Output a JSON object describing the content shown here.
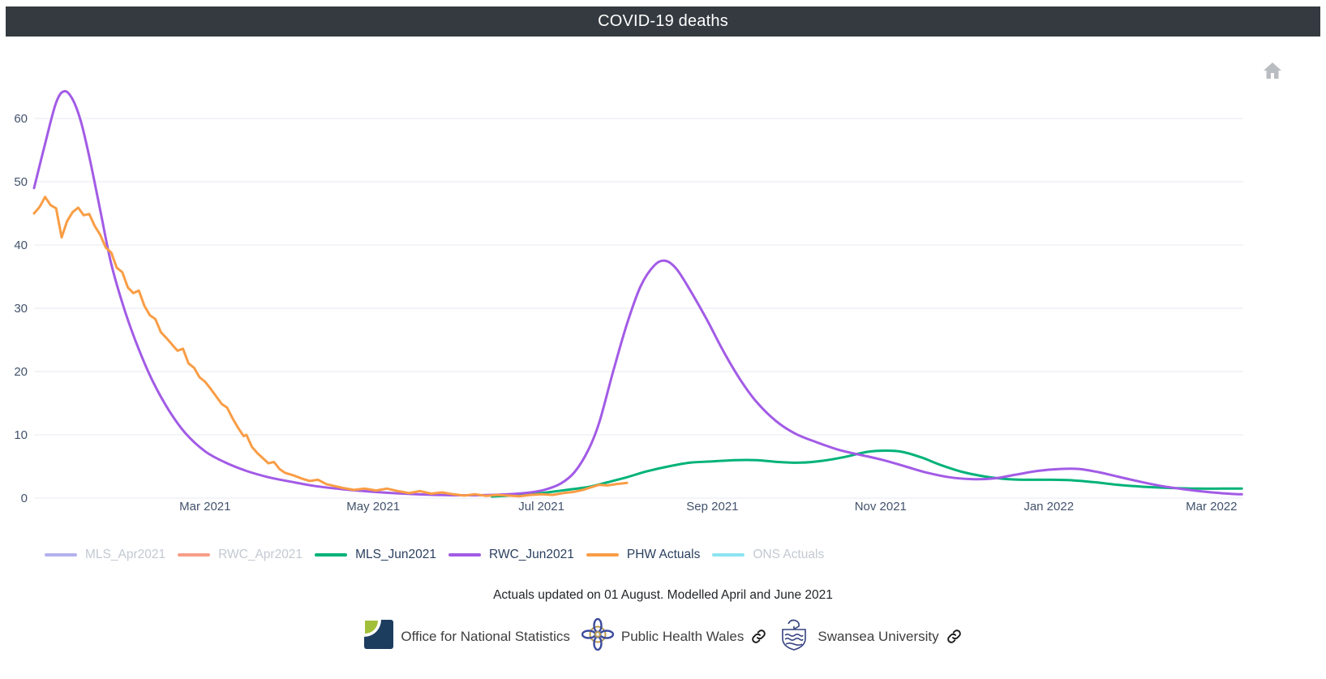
{
  "header": {
    "title": "COVID-19 deaths"
  },
  "toolbar": {
    "home_tooltip": "Reset axes"
  },
  "chart_data": {
    "type": "line",
    "title": "COVID-19 deaths",
    "xlabel": "",
    "ylabel": "",
    "grid": "horizontal-only",
    "legend_position": "bottom-left",
    "x_axis": {
      "range": [
        "2020-12-29",
        "2022-03-12"
      ],
      "ticks": [
        {
          "label": "Mar 2021",
          "date": "2021-03-01"
        },
        {
          "label": "May 2021",
          "date": "2021-05-01"
        },
        {
          "label": "Jul 2021",
          "date": "2021-07-01"
        },
        {
          "label": "Sep 2021",
          "date": "2021-09-01"
        },
        {
          "label": "Nov 2021",
          "date": "2021-11-01"
        },
        {
          "label": "Jan 2022",
          "date": "2022-01-01"
        },
        {
          "label": "Mar 2022",
          "date": "2022-03-01"
        }
      ]
    },
    "y_axis": {
      "range": [
        0,
        66
      ],
      "ticks": [
        0,
        10,
        20,
        30,
        40,
        50,
        60
      ]
    },
    "series": [
      {
        "name": "MLS_Apr2021",
        "color": "#b3b1ef",
        "visible": false,
        "line_style": "smooth",
        "points": []
      },
      {
        "name": "RWC_Apr2021",
        "color": "#f89e88",
        "visible": false,
        "line_style": "smooth",
        "points": []
      },
      {
        "name": "MLS_Jun2021",
        "color": "#00b279",
        "visible": true,
        "line_style": "smooth",
        "points": [
          [
            "2021-06-13",
            0.25
          ],
          [
            "2021-06-20",
            0.4
          ],
          [
            "2021-06-27",
            0.6
          ],
          [
            "2021-07-04",
            0.95
          ],
          [
            "2021-07-11",
            1.35
          ],
          [
            "2021-07-18",
            1.75
          ],
          [
            "2021-07-25",
            2.5
          ],
          [
            "2021-08-01",
            3.3
          ],
          [
            "2021-08-08",
            4.2
          ],
          [
            "2021-08-16",
            5.0
          ],
          [
            "2021-08-24",
            5.6
          ],
          [
            "2021-09-01",
            5.8
          ],
          [
            "2021-09-09",
            6.0
          ],
          [
            "2021-09-17",
            6.0
          ],
          [
            "2021-09-25",
            5.7
          ],
          [
            "2021-10-03",
            5.6
          ],
          [
            "2021-10-11",
            5.9
          ],
          [
            "2021-10-19",
            6.5
          ],
          [
            "2021-10-27",
            7.3
          ],
          [
            "2021-11-03",
            7.5
          ],
          [
            "2021-11-09",
            7.3
          ],
          [
            "2021-11-16",
            6.4
          ],
          [
            "2021-11-23",
            5.2
          ],
          [
            "2021-12-01",
            4.1
          ],
          [
            "2021-12-09",
            3.4
          ],
          [
            "2021-12-17",
            3.0
          ],
          [
            "2021-12-25",
            2.9
          ],
          [
            "2022-01-02",
            2.9
          ],
          [
            "2022-01-10",
            2.8
          ],
          [
            "2022-01-18",
            2.5
          ],
          [
            "2022-01-26",
            2.1
          ],
          [
            "2022-02-04",
            1.8
          ],
          [
            "2022-02-14",
            1.6
          ],
          [
            "2022-02-24",
            1.5
          ],
          [
            "2022-03-06",
            1.5
          ],
          [
            "2022-03-12",
            1.5
          ]
        ]
      },
      {
        "name": "RWC_Jun2021",
        "color": "#a25be6",
        "visible": true,
        "line_style": "smooth",
        "points": [
          [
            "2020-12-29",
            49
          ],
          [
            "2021-01-02",
            56
          ],
          [
            "2021-01-06",
            62.5
          ],
          [
            "2021-01-09",
            64.3
          ],
          [
            "2021-01-12",
            63
          ],
          [
            "2021-01-15",
            59.5
          ],
          [
            "2021-01-18",
            54
          ],
          [
            "2021-01-22",
            45.5
          ],
          [
            "2021-01-26",
            37
          ],
          [
            "2021-01-31",
            29.5
          ],
          [
            "2021-02-05",
            23.5
          ],
          [
            "2021-02-10",
            18.5
          ],
          [
            "2021-02-16",
            13.8
          ],
          [
            "2021-02-22",
            10.2
          ],
          [
            "2021-03-01",
            7.4
          ],
          [
            "2021-03-08",
            5.7
          ],
          [
            "2021-03-16",
            4.3
          ],
          [
            "2021-03-24",
            3.3
          ],
          [
            "2021-04-01",
            2.6
          ],
          [
            "2021-04-10",
            1.9
          ],
          [
            "2021-04-20",
            1.4
          ],
          [
            "2021-05-01",
            1.0
          ],
          [
            "2021-05-12",
            0.7
          ],
          [
            "2021-05-24",
            0.5
          ],
          [
            "2021-06-05",
            0.45
          ],
          [
            "2021-06-16",
            0.55
          ],
          [
            "2021-06-25",
            0.8
          ],
          [
            "2021-07-02",
            1.3
          ],
          [
            "2021-07-08",
            2.3
          ],
          [
            "2021-07-13",
            4.1
          ],
          [
            "2021-07-18",
            7.6
          ],
          [
            "2021-07-22",
            12
          ],
          [
            "2021-07-27",
            20
          ],
          [
            "2021-08-01",
            27.5
          ],
          [
            "2021-08-06",
            33.5
          ],
          [
            "2021-08-11",
            36.8
          ],
          [
            "2021-08-15",
            37.5
          ],
          [
            "2021-08-19",
            36.2
          ],
          [
            "2021-08-24",
            32.8
          ],
          [
            "2021-08-30",
            28.2
          ],
          [
            "2021-09-05",
            23.2
          ],
          [
            "2021-09-11",
            18.8
          ],
          [
            "2021-09-17",
            15.2
          ],
          [
            "2021-09-24",
            12.2
          ],
          [
            "2021-10-01",
            10.2
          ],
          [
            "2021-10-09",
            8.8
          ],
          [
            "2021-10-17",
            7.6
          ],
          [
            "2021-10-25",
            6.8
          ],
          [
            "2021-11-02",
            6.0
          ],
          [
            "2021-11-10",
            5.0
          ],
          [
            "2021-11-18",
            4.0
          ],
          [
            "2021-11-26",
            3.3
          ],
          [
            "2021-12-04",
            3.0
          ],
          [
            "2021-12-12",
            3.1
          ],
          [
            "2021-12-20",
            3.7
          ],
          [
            "2021-12-28",
            4.3
          ],
          [
            "2022-01-05",
            4.6
          ],
          [
            "2022-01-12",
            4.6
          ],
          [
            "2022-01-19",
            4.1
          ],
          [
            "2022-01-26",
            3.4
          ],
          [
            "2022-02-03",
            2.6
          ],
          [
            "2022-02-11",
            1.9
          ],
          [
            "2022-02-19",
            1.4
          ],
          [
            "2022-02-27",
            1.0
          ],
          [
            "2022-03-07",
            0.7
          ],
          [
            "2022-03-12",
            0.6
          ]
        ]
      },
      {
        "name": "PHW Actuals",
        "color": "#f99d45",
        "visible": true,
        "line_style": "jagged",
        "points": [
          [
            "2020-12-29",
            45.0
          ],
          [
            "2020-12-31",
            46.0
          ],
          [
            "2021-01-02",
            47.6
          ],
          [
            "2021-01-04",
            46.3
          ],
          [
            "2021-01-06",
            45.8
          ],
          [
            "2021-01-07",
            43.5
          ],
          [
            "2021-01-08",
            41.2
          ],
          [
            "2021-01-10",
            43.8
          ],
          [
            "2021-01-12",
            45.2
          ],
          [
            "2021-01-14",
            45.9
          ],
          [
            "2021-01-16",
            44.7
          ],
          [
            "2021-01-18",
            44.9
          ],
          [
            "2021-01-20",
            43.0
          ],
          [
            "2021-01-22",
            41.6
          ],
          [
            "2021-01-24",
            39.6
          ],
          [
            "2021-01-26",
            38.8
          ],
          [
            "2021-01-28",
            36.4
          ],
          [
            "2021-01-30",
            35.7
          ],
          [
            "2021-02-01",
            33.3
          ],
          [
            "2021-02-03",
            32.4
          ],
          [
            "2021-02-05",
            32.8
          ],
          [
            "2021-02-07",
            30.4
          ],
          [
            "2021-02-09",
            28.9
          ],
          [
            "2021-02-11",
            28.3
          ],
          [
            "2021-02-13",
            26.2
          ],
          [
            "2021-02-15",
            25.3
          ],
          [
            "2021-02-17",
            24.3
          ],
          [
            "2021-02-19",
            23.3
          ],
          [
            "2021-02-21",
            23.6
          ],
          [
            "2021-02-23",
            21.3
          ],
          [
            "2021-02-25",
            20.6
          ],
          [
            "2021-02-27",
            19.1
          ],
          [
            "2021-03-01",
            18.4
          ],
          [
            "2021-03-03",
            17.3
          ],
          [
            "2021-03-05",
            16.1
          ],
          [
            "2021-03-07",
            14.9
          ],
          [
            "2021-03-09",
            14.3
          ],
          [
            "2021-03-11",
            12.6
          ],
          [
            "2021-03-13",
            11.1
          ],
          [
            "2021-03-15",
            9.8
          ],
          [
            "2021-03-16",
            10.0
          ],
          [
            "2021-03-18",
            8.1
          ],
          [
            "2021-03-20",
            7.1
          ],
          [
            "2021-03-22",
            6.3
          ],
          [
            "2021-03-24",
            5.5
          ],
          [
            "2021-03-26",
            5.7
          ],
          [
            "2021-03-28",
            4.6
          ],
          [
            "2021-03-30",
            4.0
          ],
          [
            "2021-04-02",
            3.6
          ],
          [
            "2021-04-05",
            3.1
          ],
          [
            "2021-04-08",
            2.7
          ],
          [
            "2021-04-11",
            2.9
          ],
          [
            "2021-04-14",
            2.2
          ],
          [
            "2021-04-17",
            1.9
          ],
          [
            "2021-04-20",
            1.6
          ],
          [
            "2021-04-24",
            1.3
          ],
          [
            "2021-04-28",
            1.5
          ],
          [
            "2021-05-02",
            1.2
          ],
          [
            "2021-05-06",
            1.5
          ],
          [
            "2021-05-10",
            1.1
          ],
          [
            "2021-05-14",
            0.8
          ],
          [
            "2021-05-18",
            1.1
          ],
          [
            "2021-05-22",
            0.7
          ],
          [
            "2021-05-26",
            0.9
          ],
          [
            "2021-05-30",
            0.6
          ],
          [
            "2021-06-03",
            0.4
          ],
          [
            "2021-06-07",
            0.6
          ],
          [
            "2021-06-11",
            0.35
          ],
          [
            "2021-06-15",
            0.5
          ],
          [
            "2021-06-19",
            0.4
          ],
          [
            "2021-06-23",
            0.3
          ],
          [
            "2021-06-27",
            0.5
          ],
          [
            "2021-07-01",
            0.6
          ],
          [
            "2021-07-05",
            0.5
          ],
          [
            "2021-07-09",
            0.8
          ],
          [
            "2021-07-13",
            1.0
          ],
          [
            "2021-07-16",
            1.3
          ],
          [
            "2021-07-19",
            1.7
          ],
          [
            "2021-07-22",
            2.1
          ],
          [
            "2021-07-25",
            2.0
          ],
          [
            "2021-07-28",
            2.2
          ],
          [
            "2021-08-01",
            2.4
          ]
        ]
      },
      {
        "name": "ONS Actuals",
        "color": "#8de4f0",
        "visible": false,
        "line_style": "jagged",
        "points": []
      }
    ]
  },
  "caption": {
    "text": "Actuals updated on 01 August. Modelled April and June 2021"
  },
  "footer": {
    "sources": [
      {
        "name": "Office for National Statistics",
        "logo": "ons-logo",
        "has_link_icon": false
      },
      {
        "name": "Public Health Wales",
        "logo": "phw-logo",
        "has_link_icon": true
      },
      {
        "name": "Swansea University",
        "logo": "swansea-logo",
        "has_link_icon": true
      }
    ]
  },
  "colors": {
    "header_bg": "#343a40",
    "header_text": "#ffffff",
    "axis_text": "#42526c",
    "grid": "#e9edf4",
    "legend_active_text": "#2a3f5f",
    "legend_inactive_text": "#c3c9d2",
    "home_icon": "#b9bcc0",
    "ons_navy": "#1d3d5e",
    "ons_green": "#a2bf3a",
    "phw_navy": "#3c4b9e",
    "phw_gold": "#b99a4e",
    "swansea_navy": "#34427f",
    "link_icon": "#1a1a1a"
  }
}
